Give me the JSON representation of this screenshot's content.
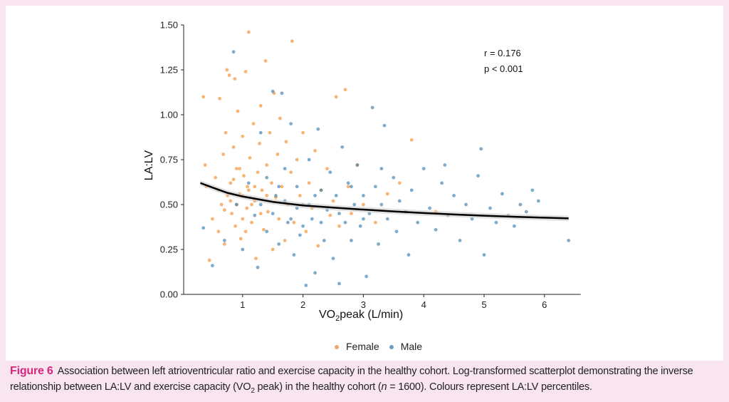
{
  "chart_data": {
    "type": "scatter",
    "xlabel": "VO2peak (L/min)",
    "xlabel_main": "VO",
    "xlabel_sub": "2",
    "xlabel_rest": "peak (L/min)",
    "ylabel": "LA:LV",
    "xlim": [
      0,
      6.6
    ],
    "ylim": [
      0,
      1.5
    ],
    "xticks": [
      "1",
      "2",
      "3",
      "4",
      "5",
      "6"
    ],
    "yticks": [
      "0.00",
      "0.25",
      "0.50",
      "0.75",
      "1.00",
      "1.25",
      "1.50"
    ],
    "annotation": [
      "r = 0.176",
      "p < 0.001"
    ],
    "legend": {
      "position": "bottom",
      "entries": [
        "Female",
        "Male"
      ]
    },
    "grid": false,
    "colors": {
      "Female": "#f28e2b",
      "Male": "#3b7fb0",
      "fit": "#000000"
    },
    "series": [
      {
        "name": "Female",
        "points": [
          [
            0.35,
            1.1
          ],
          [
            0.38,
            0.72
          ],
          [
            0.4,
            0.6
          ],
          [
            0.45,
            0.19
          ],
          [
            0.5,
            0.42
          ],
          [
            0.55,
            0.65
          ],
          [
            0.6,
            0.35
          ],
          [
            0.62,
            1.09
          ],
          [
            0.65,
            0.5
          ],
          [
            0.68,
            0.78
          ],
          [
            0.7,
            0.28
          ],
          [
            0.72,
            0.9
          ],
          [
            0.74,
            1.25
          ],
          [
            0.75,
            0.55
          ],
          [
            0.78,
            1.22
          ],
          [
            0.8,
            0.62
          ],
          [
            0.82,
            0.45
          ],
          [
            0.85,
            0.82
          ],
          [
            0.87,
            1.2
          ],
          [
            0.88,
            0.38
          ],
          [
            0.9,
            0.7
          ],
          [
            0.92,
            1.02
          ],
          [
            0.95,
            0.56
          ],
          [
            0.97,
            0.31
          ],
          [
            1.0,
            0.88
          ],
          [
            1.02,
            0.66
          ],
          [
            1.05,
            1.24
          ],
          [
            1.07,
            0.48
          ],
          [
            1.08,
            0.6
          ],
          [
            1.1,
            1.46
          ],
          [
            1.12,
            0.76
          ],
          [
            1.15,
            0.4
          ],
          [
            1.18,
            0.95
          ],
          [
            1.2,
            0.52
          ],
          [
            1.22,
            0.2
          ],
          [
            1.25,
            0.68
          ],
          [
            1.28,
            0.84
          ],
          [
            1.3,
            1.05
          ],
          [
            1.32,
            0.58
          ],
          [
            1.35,
            0.36
          ],
          [
            1.38,
            1.3
          ],
          [
            1.4,
            0.72
          ],
          [
            1.42,
            0.46
          ],
          [
            1.45,
            0.9
          ],
          [
            1.48,
            0.62
          ],
          [
            1.5,
            0.25
          ],
          [
            1.52,
            1.12
          ],
          [
            1.55,
            0.54
          ],
          [
            1.58,
            0.78
          ],
          [
            1.6,
            0.42
          ],
          [
            1.62,
            0.98
          ],
          [
            1.65,
            0.6
          ],
          [
            1.7,
            0.3
          ],
          [
            1.72,
            0.85
          ],
          [
            1.75,
            0.5
          ],
          [
            1.8,
            0.68
          ],
          [
            1.82,
            1.41
          ],
          [
            1.85,
            0.4
          ],
          [
            1.9,
            0.75
          ],
          [
            1.95,
            0.55
          ],
          [
            2.0,
            0.9
          ],
          [
            2.05,
            0.35
          ],
          [
            2.1,
            0.62
          ],
          [
            2.15,
            0.48
          ],
          [
            2.2,
            0.8
          ],
          [
            2.25,
            0.27
          ],
          [
            2.3,
            0.58
          ],
          [
            2.4,
            0.7
          ],
          [
            2.45,
            0.44
          ],
          [
            2.5,
            0.52
          ],
          [
            2.55,
            1.1
          ],
          [
            2.6,
            0.38
          ],
          [
            2.7,
            1.14
          ],
          [
            2.75,
            0.6
          ],
          [
            2.8,
            0.45
          ],
          [
            2.9,
            0.72
          ],
          [
            3.0,
            0.5
          ],
          [
            3.2,
            0.4
          ],
          [
            3.4,
            0.56
          ],
          [
            3.6,
            0.62
          ],
          [
            3.8,
            0.86
          ],
          [
            4.2,
            0.46
          ],
          [
            0.9,
            0.5
          ],
          [
            1.0,
            0.55
          ],
          [
            1.1,
            0.58
          ],
          [
            0.8,
            0.52
          ],
          [
            1.2,
            0.6
          ],
          [
            1.3,
            0.45
          ],
          [
            1.0,
            0.42
          ],
          [
            0.95,
            0.7
          ],
          [
            1.15,
            0.5
          ],
          [
            0.7,
            0.47
          ],
          [
            1.4,
            0.55
          ],
          [
            0.6,
            0.58
          ],
          [
            1.05,
            0.35
          ],
          [
            0.85,
            0.64
          ]
        ]
      },
      {
        "name": "Male",
        "points": [
          [
            0.35,
            0.37
          ],
          [
            0.5,
            0.16
          ],
          [
            0.7,
            0.3
          ],
          [
            0.85,
            1.35
          ],
          [
            0.9,
            0.5
          ],
          [
            1.0,
            0.25
          ],
          [
            1.1,
            0.62
          ],
          [
            1.2,
            0.44
          ],
          [
            1.25,
            0.15
          ],
          [
            1.3,
            0.9
          ],
          [
            1.4,
            0.35
          ],
          [
            1.5,
            1.13
          ],
          [
            1.55,
            0.55
          ],
          [
            1.6,
            0.28
          ],
          [
            1.65,
            1.12
          ],
          [
            1.7,
            0.7
          ],
          [
            1.75,
            0.4
          ],
          [
            1.8,
            0.95
          ],
          [
            1.85,
            0.22
          ],
          [
            1.9,
            0.6
          ],
          [
            1.95,
            0.33
          ],
          [
            2.0,
            0.5
          ],
          [
            2.05,
            0.05
          ],
          [
            2.1,
            0.75
          ],
          [
            2.15,
            0.42
          ],
          [
            2.2,
            0.12
          ],
          [
            2.25,
            0.92
          ],
          [
            2.3,
            0.58
          ],
          [
            2.35,
            0.3
          ],
          [
            2.4,
            0.47
          ],
          [
            2.45,
            0.68
          ],
          [
            2.5,
            0.2
          ],
          [
            2.55,
            0.55
          ],
          [
            2.6,
            0.06
          ],
          [
            2.65,
            0.82
          ],
          [
            2.7,
            0.4
          ],
          [
            2.75,
            0.62
          ],
          [
            2.8,
            0.3
          ],
          [
            2.85,
            0.5
          ],
          [
            2.9,
            0.72
          ],
          [
            2.95,
            0.38
          ],
          [
            3.0,
            0.55
          ],
          [
            3.05,
            0.1
          ],
          [
            3.1,
            0.45
          ],
          [
            3.15,
            1.04
          ],
          [
            3.2,
            0.6
          ],
          [
            3.25,
            0.28
          ],
          [
            3.3,
            0.5
          ],
          [
            3.35,
            0.94
          ],
          [
            3.4,
            0.42
          ],
          [
            3.5,
            0.65
          ],
          [
            3.55,
            0.35
          ],
          [
            3.6,
            0.52
          ],
          [
            3.7,
            0.46
          ],
          [
            3.75,
            0.22
          ],
          [
            3.8,
            0.58
          ],
          [
            3.9,
            0.4
          ],
          [
            4.0,
            0.7
          ],
          [
            4.1,
            0.48
          ],
          [
            4.2,
            0.36
          ],
          [
            4.3,
            0.62
          ],
          [
            4.35,
            0.72
          ],
          [
            4.4,
            0.44
          ],
          [
            4.5,
            0.55
          ],
          [
            4.6,
            0.3
          ],
          [
            4.7,
            0.5
          ],
          [
            4.8,
            0.42
          ],
          [
            4.9,
            0.66
          ],
          [
            4.95,
            0.81
          ],
          [
            5.0,
            0.22
          ],
          [
            5.1,
            0.48
          ],
          [
            5.2,
            0.4
          ],
          [
            5.3,
            0.56
          ],
          [
            5.4,
            0.44
          ],
          [
            5.5,
            0.38
          ],
          [
            5.6,
            0.5
          ],
          [
            5.7,
            0.46
          ],
          [
            5.8,
            0.58
          ],
          [
            5.9,
            0.52
          ],
          [
            6.4,
            0.3
          ],
          [
            1.3,
            0.5
          ],
          [
            1.5,
            0.45
          ],
          [
            1.7,
            0.52
          ],
          [
            1.9,
            0.48
          ],
          [
            2.0,
            0.38
          ],
          [
            2.2,
            0.55
          ],
          [
            1.6,
            0.6
          ],
          [
            1.8,
            0.42
          ],
          [
            2.1,
            0.5
          ],
          [
            2.3,
            0.4
          ],
          [
            1.4,
            0.65
          ],
          [
            2.6,
            0.45
          ],
          [
            3.3,
            0.7
          ],
          [
            3.0,
            0.42
          ],
          [
            2.8,
            0.6
          ]
        ]
      }
    ],
    "fit": {
      "name": "fit",
      "points": [
        [
          0.3,
          0.62
        ],
        [
          0.5,
          0.595
        ],
        [
          0.75,
          0.565
        ],
        [
          1.0,
          0.545
        ],
        [
          1.5,
          0.515
        ],
        [
          2.0,
          0.495
        ],
        [
          2.5,
          0.483
        ],
        [
          3.0,
          0.472
        ],
        [
          3.5,
          0.462
        ],
        [
          4.0,
          0.453
        ],
        [
          4.5,
          0.445
        ],
        [
          5.0,
          0.438
        ],
        [
          5.5,
          0.432
        ],
        [
          6.0,
          0.427
        ],
        [
          6.4,
          0.423
        ]
      ]
    }
  },
  "caption": {
    "label": "Figure 6",
    "text_1": "Association between left atrioventricular ratio and exercise capacity in the healthy cohort. Log-transformed scatterplot demonstrating the inverse relationship between LA:LV and exercise capacity (VO",
    "sub": "2",
    "text_2": " peak) in the healthy cohort (",
    "n": "n",
    "text_3": " = 1600). Colours represent LA:LV percentiles."
  }
}
